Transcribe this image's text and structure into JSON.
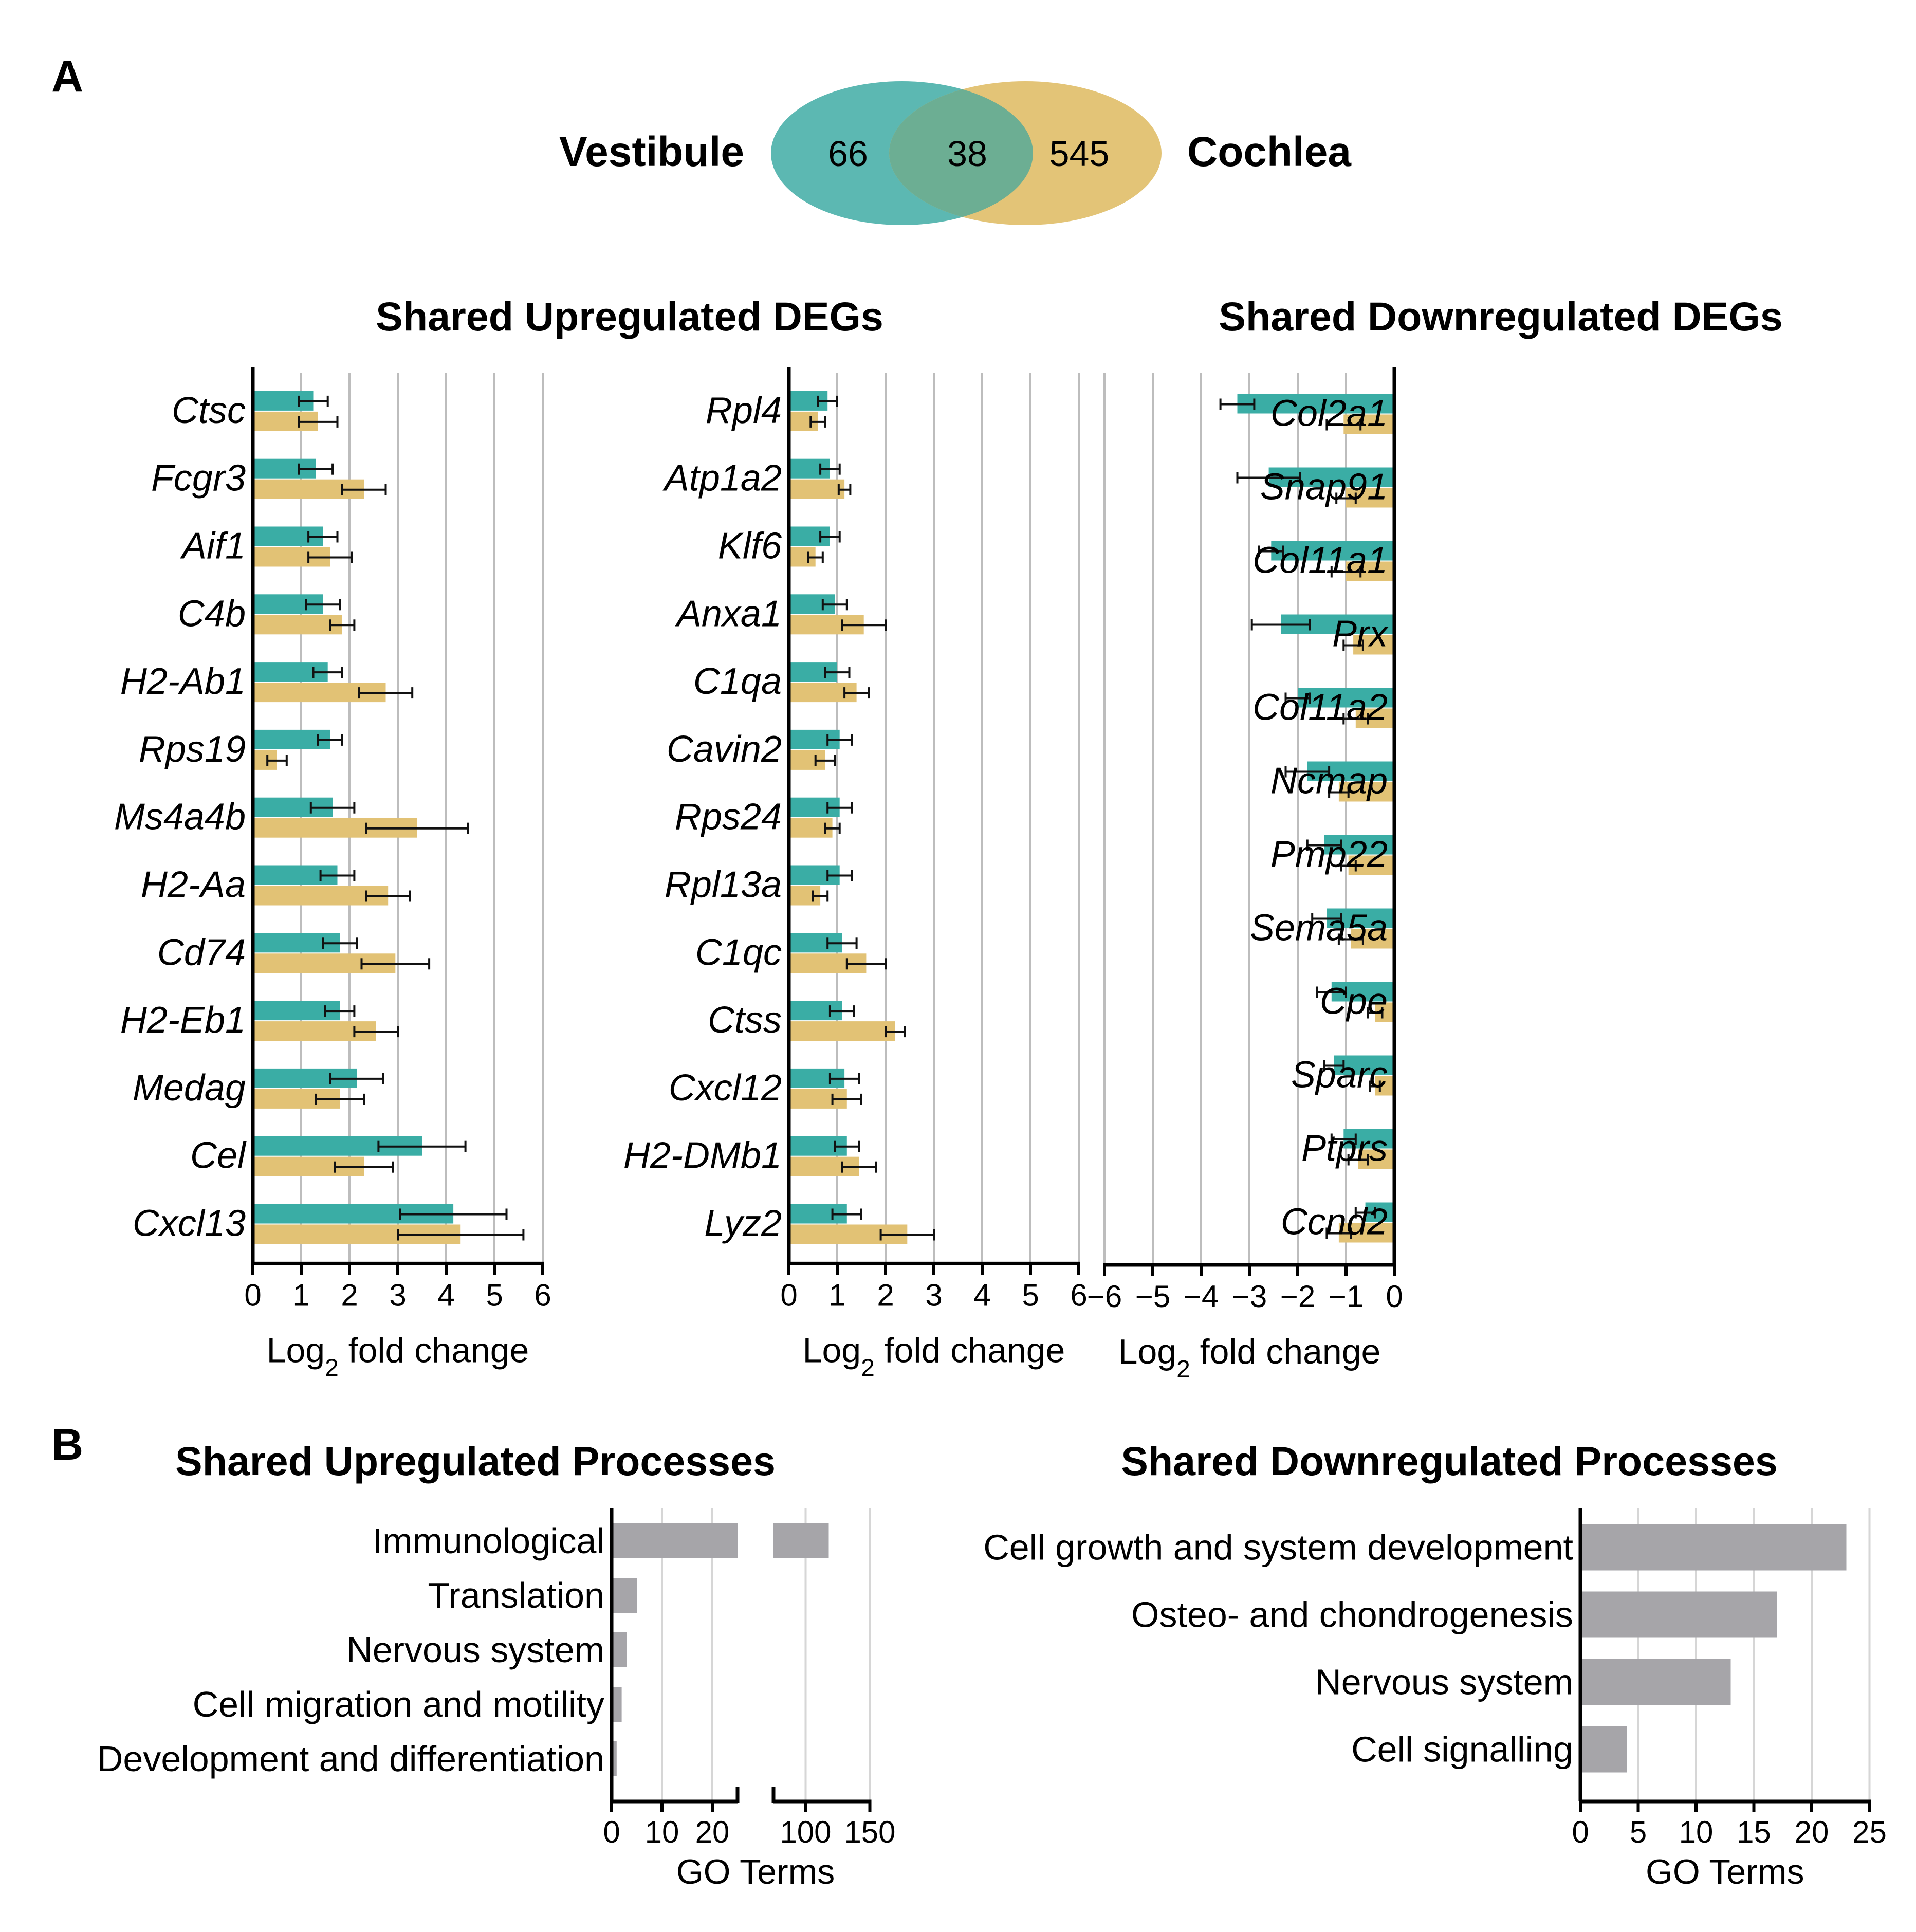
{
  "panels": {
    "a": "A",
    "b": "B"
  },
  "venn": {
    "left_label": "Vestibule",
    "right_label": "Cochlea",
    "left_only": "66",
    "overlap": "38",
    "right_only": "545",
    "left_color": "#5cb8b2",
    "right_color": "#e3c477"
  },
  "colors": {
    "vestibule": "#3aada5",
    "cochlea": "#e2c275",
    "process": "#a6a5a9",
    "grid": "#bdbdbd"
  },
  "chart_data": [
    {
      "id": "up1",
      "type": "bar",
      "orientation": "horizontal",
      "title": "Shared Upregulated DEGs",
      "xlabel": "Log2 fold change",
      "xlim": [
        0,
        6
      ],
      "xticks": [
        "0",
        "1",
        "2",
        "3",
        "4",
        "5",
        "6"
      ],
      "categories": [
        "Ctsc",
        "Fcgr3",
        "Aif1",
        "C4b",
        "H2-Ab1",
        "Rps19",
        "Ms4a4b",
        "H2-Aa",
        "Cd74",
        "H2-Eb1",
        "Medag",
        "Cel",
        "Cxcl13"
      ],
      "series": [
        {
          "name": "Vestibule",
          "values": [
            1.25,
            1.3,
            1.45,
            1.45,
            1.55,
            1.6,
            1.65,
            1.75,
            1.8,
            1.8,
            2.15,
            3.5,
            4.15
          ],
          "errors": [
            0.3,
            0.35,
            0.3,
            0.35,
            0.3,
            0.25,
            0.45,
            0.35,
            0.35,
            0.3,
            0.55,
            0.9,
            1.1
          ]
        },
        {
          "name": "Cochlea",
          "values": [
            1.35,
            2.3,
            1.6,
            1.85,
            2.75,
            0.5,
            3.4,
            2.8,
            2.95,
            2.55,
            1.8,
            2.3,
            4.3
          ],
          "errors": [
            0.4,
            0.45,
            0.45,
            0.25,
            0.55,
            0.2,
            1.05,
            0.45,
            0.7,
            0.45,
            0.5,
            0.6,
            1.3
          ]
        }
      ]
    },
    {
      "id": "up2",
      "type": "bar",
      "orientation": "horizontal",
      "title": "",
      "xlabel": "Log2 fold change",
      "xlim": [
        0,
        6
      ],
      "xticks": [
        "0",
        "1",
        "2",
        "3",
        "4",
        "5",
        "6"
      ],
      "categories": [
        "Rpl4",
        "Atp1a2",
        "Klf6",
        "Anxa1",
        "C1qa",
        "Cavin2",
        "Rps24",
        "Rpl13a",
        "C1qc",
        "Ctss",
        "Cxcl12",
        "H2-DMb1",
        "Lyz2"
      ],
      "series": [
        {
          "name": "Vestibule",
          "values": [
            0.8,
            0.85,
            0.85,
            0.95,
            1.0,
            1.05,
            1.05,
            1.05,
            1.1,
            1.1,
            1.15,
            1.2,
            1.2
          ],
          "errors": [
            0.2,
            0.2,
            0.2,
            0.25,
            0.25,
            0.25,
            0.25,
            0.25,
            0.3,
            0.25,
            0.3,
            0.25,
            0.3
          ]
        },
        {
          "name": "Cochlea",
          "values": [
            0.6,
            1.15,
            0.55,
            1.55,
            1.4,
            0.75,
            0.9,
            0.65,
            1.6,
            2.2,
            1.2,
            1.45,
            2.45
          ],
          "errors": [
            0.15,
            0.12,
            0.15,
            0.45,
            0.25,
            0.2,
            0.15,
            0.15,
            0.4,
            0.2,
            0.3,
            0.35,
            0.55
          ]
        }
      ]
    },
    {
      "id": "down",
      "type": "bar",
      "orientation": "horizontal",
      "title": "Shared Downregulated DEGs",
      "xlabel": "Log2 fold change",
      "xlim": [
        0,
        -6
      ],
      "xticks": [
        "0",
        "−1",
        "−2",
        "−3",
        "−4",
        "−5",
        "−6"
      ],
      "categories": [
        "Col2a1",
        "Snap91",
        "Col11a1",
        "Prx",
        "Col11a2",
        "Ncmap",
        "Pmp22",
        "Sema5a",
        "Cpe",
        "Sparc",
        "Ptprs",
        "Ccnd2"
      ],
      "series": [
        {
          "name": "Vestibule",
          "values": [
            -3.25,
            -2.6,
            -2.55,
            -2.35,
            -2.0,
            -1.8,
            -1.45,
            -1.4,
            -1.3,
            -1.25,
            -1.05,
            -0.6
          ],
          "errors": [
            0.35,
            0.65,
            0.25,
            0.6,
            0.25,
            0.45,
            0.35,
            0.3,
            0.3,
            0.2,
            0.25,
            0.2
          ]
        },
        {
          "name": "Cochlea",
          "values": [
            -1.05,
            -1.0,
            -1.0,
            -0.85,
            -0.8,
            -1.15,
            -0.95,
            -0.9,
            -0.4,
            -0.4,
            -0.75,
            -1.15
          ],
          "errors": [
            0.35,
            0.2,
            0.3,
            0.2,
            0.25,
            0.2,
            0.15,
            0.25,
            0.15,
            0.1,
            0.2,
            0.25
          ]
        }
      ]
    },
    {
      "id": "proc_up",
      "type": "bar",
      "orientation": "horizontal",
      "title": "Shared Upregulated Processes",
      "xlabel": "GO Terms",
      "axis_break": [
        25,
        75
      ],
      "xlim": [
        0,
        150
      ],
      "xticks": [
        "0",
        "10",
        "20",
        "100",
        "150"
      ],
      "categories": [
        "Immunological",
        "Translation",
        "Nervous system",
        "Cell migration and motility",
        "Development and differentiation"
      ],
      "values": [
        118,
        5,
        3,
        2,
        1
      ]
    },
    {
      "id": "proc_down",
      "type": "bar",
      "orientation": "horizontal",
      "title": "Shared Downregulated Processes",
      "xlabel": "GO Terms",
      "xlim": [
        0,
        25
      ],
      "xticks": [
        "0",
        "5",
        "10",
        "15",
        "20",
        "25"
      ],
      "categories": [
        "Cell growth and system development",
        "Osteo- and chondrogenesis",
        "Nervous system",
        "Cell signalling"
      ],
      "values": [
        23,
        17,
        13,
        4
      ]
    }
  ]
}
